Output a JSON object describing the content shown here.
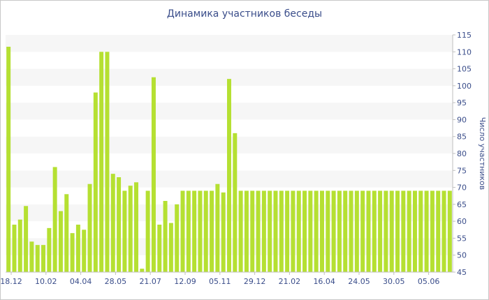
{
  "chart_data": {
    "type": "bar",
    "title": "Динамика участников беседы",
    "ylabel": "Число участников",
    "xlabel": "",
    "ylim": [
      45,
      115
    ],
    "yticks": [
      45,
      50,
      55,
      60,
      65,
      70,
      75,
      80,
      85,
      90,
      95,
      100,
      105,
      110,
      115
    ],
    "x_tick_labels": [
      "18.12",
      "10.02",
      "04.04",
      "28.05",
      "21.07",
      "12.09",
      "05.11",
      "29.12",
      "21.02",
      "16.04",
      "24.05",
      "30.05",
      "05.06"
    ],
    "grid": "horizontal-bands",
    "bar_color": "#b5e032",
    "values": [
      111.5,
      59,
      60.5,
      64.5,
      54,
      53,
      53,
      58,
      76,
      63,
      68,
      56.5,
      59,
      57.5,
      71,
      98,
      110,
      110,
      74,
      73,
      69,
      70.5,
      71.5,
      46,
      69,
      102.5,
      59,
      66,
      59.5,
      65,
      69,
      69,
      69,
      69,
      69,
      69,
      71,
      68.5,
      102,
      86,
      69,
      69,
      69,
      69,
      69,
      69,
      69,
      69,
      69,
      69,
      69,
      69,
      69,
      69,
      69,
      69,
      69,
      69,
      69,
      69,
      69,
      69,
      69,
      69,
      69,
      69,
      69,
      69,
      69,
      69,
      69,
      69,
      69,
      69,
      69,
      69,
      69
    ]
  }
}
